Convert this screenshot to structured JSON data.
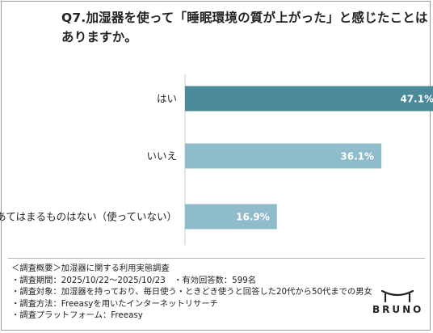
{
  "title": {
    "line1": "Q7.加湿器を使って「睡眠環境の質が上がった」と感じたことは",
    "line2": "ありますか。"
  },
  "chart_data": {
    "type": "bar",
    "orientation": "horizontal",
    "categories": [
      "はい",
      "いいえ",
      "あてはまるものはない（使っていない）"
    ],
    "values": [
      47.1,
      36.1,
      16.9
    ],
    "data_labels": [
      "47.1%",
      "36.1%",
      "16.9%"
    ],
    "unit": "%",
    "colors": [
      "#4b8a98",
      "#8fbccb",
      "#8fbccb"
    ],
    "xlim": [
      0,
      60
    ],
    "grid": false,
    "legend": "none"
  },
  "notes": [
    "＜調査概要＞加湿器に関する利用実態調査",
    "・調査期間：2025/10/22～2025/10/23　・有効回答数：599名",
    "・調査対象：加湿器を持っており、毎日使う・ときどき使うと回答した20代から50代までの男女",
    "・調査方法：Freeasyを用いたインターネットリサーチ",
    "・調査プラットフォーム：Freeasy"
  ],
  "brand": {
    "name": "BRUNO",
    "logo_icon": "bruno-pot-logo-icon"
  }
}
